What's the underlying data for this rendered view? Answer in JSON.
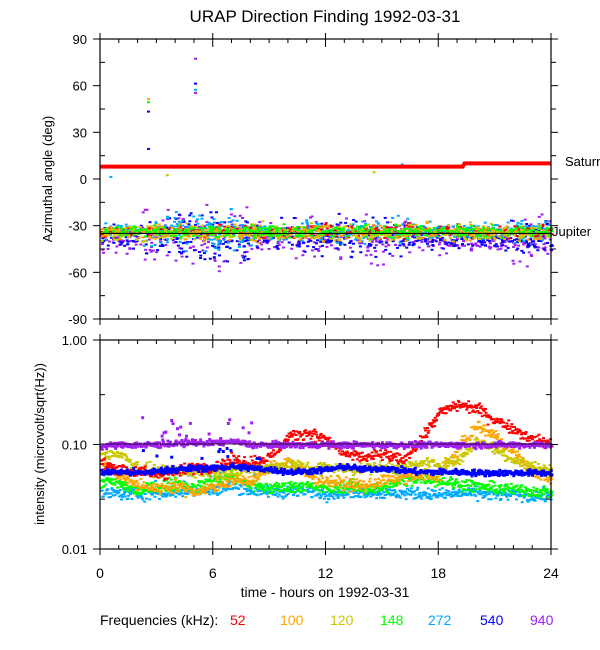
{
  "chart_data": [
    {
      "type": "scatter",
      "title": "URAP Direction Finding  1992-03-31",
      "xlabel": "",
      "ylabel": "Azimuthal angle (deg)",
      "xlim": [
        0,
        24
      ],
      "ylim": [
        -90,
        90
      ],
      "yticks": [
        "90",
        "60",
        "30",
        "0",
        "-30",
        "-60",
        "-90"
      ],
      "ytick_values": [
        90,
        60,
        30,
        0,
        -30,
        -60,
        -90
      ],
      "reference_lines": [
        {
          "name": "Saturn",
          "color": "#ff0000",
          "segments": [
            [
              0,
              8
            ],
            [
              19.3,
              8
            ],
            [
              19.4,
              10
            ],
            [
              24,
              10
            ]
          ]
        },
        {
          "name": "Jupiter",
          "color": "#000000",
          "value": -35
        }
      ],
      "series": [
        {
          "name": "52",
          "color": "#ff0000",
          "center": -33,
          "spread": 3,
          "spread_by_hour": [
            3,
            3,
            3,
            4,
            4,
            5,
            5,
            5,
            4,
            4,
            4,
            4,
            4,
            4,
            4,
            4,
            4,
            4,
            4,
            4,
            4,
            4,
            4,
            4
          ]
        },
        {
          "name": "100",
          "color": "#ffa500",
          "center": -34,
          "spread": 4
        },
        {
          "name": "120",
          "color": "#c8c800",
          "center": -34,
          "spread": 4
        },
        {
          "name": "148",
          "color": "#00ff00",
          "center": -33,
          "spread": 3
        },
        {
          "name": "272",
          "color": "#00aaff",
          "center": -33,
          "spread": 6
        },
        {
          "name": "540",
          "color": "#0000ff",
          "center": -37,
          "spread": 9
        },
        {
          "name": "940",
          "color": "#a020f0",
          "center": -38,
          "spread": 11
        }
      ],
      "outliers": [
        {
          "series": "100",
          "x": 2.5,
          "y": 52
        },
        {
          "series": "148",
          "x": 2.5,
          "y": 50
        },
        {
          "series": "540",
          "x": 2.5,
          "y": 44
        },
        {
          "series": "540",
          "x": 2.5,
          "y": 20
        },
        {
          "series": "940",
          "x": 5.0,
          "y": 78
        },
        {
          "series": "540",
          "x": 5.0,
          "y": 62
        },
        {
          "series": "272",
          "x": 5.0,
          "y": 58
        },
        {
          "series": "940",
          "x": 5.0,
          "y": 56
        },
        {
          "series": "120",
          "x": 3.5,
          "y": 3
        },
        {
          "series": "272",
          "x": 16.0,
          "y": 10
        },
        {
          "series": "120",
          "x": 14.5,
          "y": 5
        },
        {
          "series": "940",
          "x": 11.3,
          "y": 8
        },
        {
          "series": "272",
          "x": 0.5,
          "y": 2
        }
      ]
    },
    {
      "type": "scatter",
      "title": "",
      "xlabel": "time - hours on 1992-03-31",
      "ylabel": "intensity (microvolt/sqrt(Hz))",
      "xlim": [
        0,
        24
      ],
      "ylim": [
        0.01,
        1.0
      ],
      "yscale": "log",
      "yticks": [
        "1.00",
        "0.10",
        "0.01"
      ],
      "ytick_values": [
        1.0,
        0.1,
        0.01
      ],
      "xticks": [
        "0",
        "6",
        "12",
        "18",
        "24"
      ],
      "xtick_values": [
        0,
        6,
        12,
        18,
        24
      ],
      "hours": [
        0,
        1,
        2,
        3,
        4,
        5,
        6,
        7,
        8,
        9,
        10,
        11,
        12,
        13,
        14,
        15,
        16,
        17,
        18,
        19,
        20,
        21,
        22,
        23,
        24
      ],
      "series": [
        {
          "name": "52",
          "color": "#ff0000",
          "values": [
            0.065,
            0.058,
            0.055,
            0.052,
            0.055,
            0.06,
            0.062,
            0.07,
            0.068,
            0.075,
            0.12,
            0.13,
            0.11,
            0.08,
            0.075,
            0.08,
            0.07,
            0.11,
            0.2,
            0.24,
            0.22,
            0.17,
            0.14,
            0.11,
            0.1
          ]
        },
        {
          "name": "100",
          "color": "#ffa500",
          "values": [
            0.07,
            0.05,
            0.04,
            0.038,
            0.04,
            0.035,
            0.04,
            0.045,
            0.045,
            0.06,
            0.07,
            0.05,
            0.045,
            0.042,
            0.04,
            0.045,
            0.048,
            0.05,
            0.05,
            0.09,
            0.15,
            0.12,
            0.08,
            0.055,
            0.045
          ]
        },
        {
          "name": "120",
          "color": "#c8c800",
          "values": [
            0.08,
            0.082,
            0.06,
            0.055,
            0.055,
            0.055,
            0.055,
            0.055,
            0.06,
            0.06,
            0.065,
            0.06,
            0.06,
            0.058,
            0.06,
            0.06,
            0.06,
            0.065,
            0.065,
            0.07,
            0.11,
            0.09,
            0.07,
            0.06,
            0.058
          ]
        },
        {
          "name": "148",
          "color": "#00ff00",
          "values": [
            0.045,
            0.042,
            0.035,
            0.04,
            0.042,
            0.038,
            0.045,
            0.05,
            0.04,
            0.038,
            0.04,
            0.04,
            0.038,
            0.04,
            0.038,
            0.038,
            0.045,
            0.048,
            0.045,
            0.042,
            0.04,
            0.038,
            0.037,
            0.036,
            0.035
          ]
        },
        {
          "name": "272",
          "color": "#00aaff",
          "values": [
            0.034,
            0.034,
            0.033,
            0.034,
            0.035,
            0.035,
            0.036,
            0.04,
            0.036,
            0.035,
            0.036,
            0.035,
            0.034,
            0.035,
            0.035,
            0.034,
            0.034,
            0.034,
            0.033,
            0.034,
            0.034,
            0.033,
            0.033,
            0.032,
            0.032
          ]
        },
        {
          "name": "540",
          "color": "#0000ff",
          "values": [
            0.055,
            0.055,
            0.054,
            0.056,
            0.058,
            0.06,
            0.06,
            0.062,
            0.06,
            0.058,
            0.055,
            0.056,
            0.058,
            0.062,
            0.058,
            0.06,
            0.057,
            0.055,
            0.055,
            0.055,
            0.054,
            0.054,
            0.054,
            0.054,
            0.054
          ]
        },
        {
          "name": "940",
          "color": "#a020f0",
          "values": [
            0.097,
            0.1,
            0.1,
            0.1,
            0.102,
            0.105,
            0.105,
            0.108,
            0.1,
            0.1,
            0.1,
            0.1,
            0.1,
            0.1,
            0.1,
            0.1,
            0.1,
            0.1,
            0.1,
            0.1,
            0.1,
            0.1,
            0.1,
            0.1,
            0.1
          ]
        }
      ]
    }
  ],
  "legend": {
    "label": "Frequencies (kHz):",
    "items": [
      {
        "label": "52",
        "color": "#ff0000"
      },
      {
        "label": "100",
        "color": "#ffa500"
      },
      {
        "label": "120",
        "color": "#c8c800"
      },
      {
        "label": "148",
        "color": "#00ff00"
      },
      {
        "label": "272",
        "color": "#00aaff"
      },
      {
        "label": "540",
        "color": "#0000ff"
      },
      {
        "label": "940",
        "color": "#a020f0"
      }
    ]
  }
}
